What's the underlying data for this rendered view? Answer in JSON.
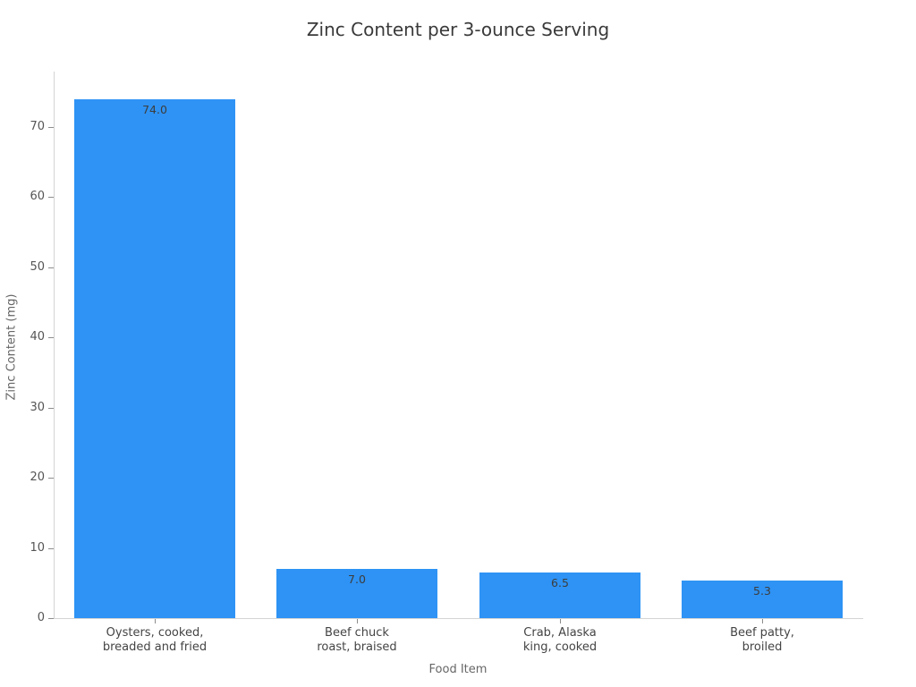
{
  "title": "Zinc Content per 3-ounce Serving",
  "colors": {
    "bar": "#2E93F5",
    "axis_line": "#d4d4d4",
    "tick_mark": "#8c8c8c",
    "ytick_text": "#555555",
    "xtick_text": "#444444",
    "title_text": "#3a3a3a",
    "axis_title_text": "#666666",
    "value_label_text": "#3d3d3d",
    "background": "#ffffff"
  },
  "chart_data": {
    "type": "bar",
    "title": "Zinc Content per 3-ounce Serving",
    "xlabel": "Food Item",
    "ylabel": "Zinc Content (mg)",
    "categories": [
      "Oysters, cooked,\nbreaded and fried",
      "Beef chuck\nroast, braised",
      "Crab, Alaska\nking, cooked",
      "Beef patty,\nbroiled"
    ],
    "values": [
      74.0,
      7.0,
      6.5,
      5.3
    ],
    "value_labels": [
      "74.0",
      "7.0",
      "6.5",
      "5.3"
    ],
    "yticks": [
      0,
      10,
      20,
      30,
      40,
      50,
      60,
      70
    ],
    "ylim": [
      0,
      77.9
    ],
    "grid": false,
    "legend": false,
    "bar_color": "#2E93F5"
  }
}
